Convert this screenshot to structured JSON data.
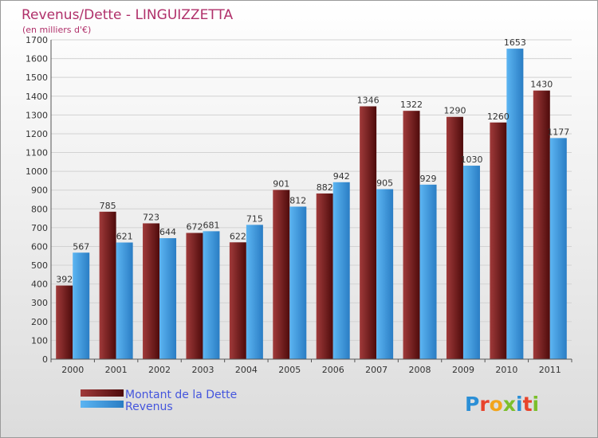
{
  "chart_data": {
    "type": "bar",
    "title": "Revenus/Dette - LINGUIZZETTA",
    "subtitle": "(en milliers d'€)",
    "categories": [
      "2000",
      "2001",
      "2002",
      "2003",
      "2004",
      "2005",
      "2006",
      "2007",
      "2008",
      "2009",
      "2010",
      "2011"
    ],
    "series": [
      {
        "name": "Montant de la Dette",
        "color": "#7a1c1c",
        "values": [
          392,
          785,
          723,
          672,
          622,
          901,
          882,
          1346,
          1322,
          1290,
          1260,
          1430
        ]
      },
      {
        "name": "Revenus",
        "color": "#3d9be3",
        "values": [
          567,
          621,
          644,
          681,
          715,
          812,
          942,
          905,
          929,
          1030,
          1653,
          1177
        ]
      }
    ],
    "yticks": [
      "0",
      "100",
      "200",
      "300",
      "400",
      "500",
      "600",
      "700",
      "800",
      "900",
      "1000",
      "1100",
      "1200",
      "1300",
      "1400",
      "1500",
      "1600",
      "1700"
    ],
    "ylim": [
      0,
      1700
    ],
    "grid": true,
    "legend_position": "bottom-left",
    "colors": {
      "title": "#b0306a",
      "legend_text": "#4455dd",
      "axis_text": "#333333"
    }
  },
  "logo": {
    "text": "Proxiti"
  }
}
